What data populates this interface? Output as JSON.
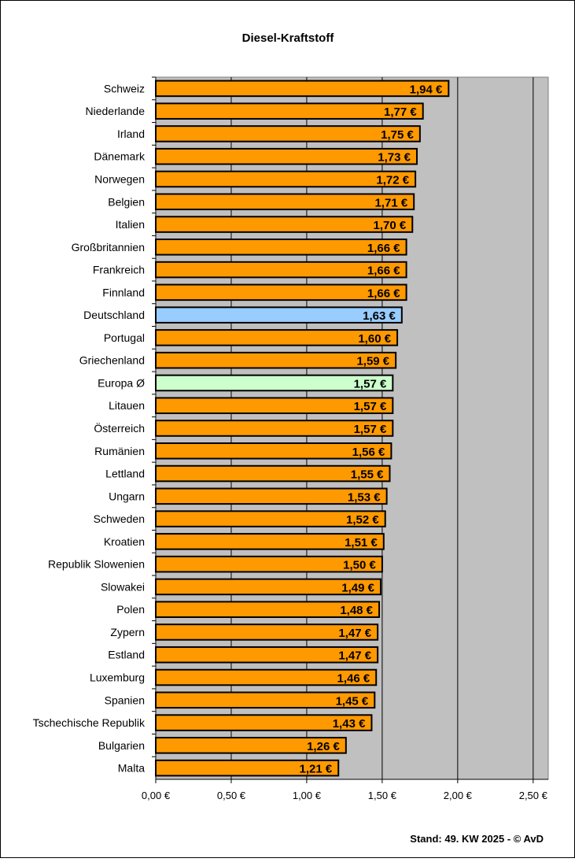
{
  "chart_data": {
    "type": "bar",
    "orientation": "horizontal",
    "title": "Diesel-Kraftstoff",
    "footer": "Stand: 49. KW 2025 - © AvD",
    "categories": [
      "Schweiz",
      "Niederlande",
      "Irland",
      "Dänemark",
      "Norwegen",
      "Belgien",
      "Italien",
      "Großbritannien",
      "Frankreich",
      "Finnland",
      "Deutschland",
      "Portugal",
      "Griechenland",
      "Europa Ø",
      "Litauen",
      "Österreich",
      "Rumänien",
      "Lettland",
      "Ungarn",
      "Schweden",
      "Kroatien",
      "Republik Slowenien",
      "Slowakei",
      "Polen",
      "Zypern",
      "Estland",
      "Luxemburg",
      "Spanien",
      "Tschechische Republik",
      "Bulgarien",
      "Malta"
    ],
    "values": [
      1.94,
      1.77,
      1.75,
      1.73,
      1.72,
      1.71,
      1.7,
      1.66,
      1.66,
      1.66,
      1.63,
      1.6,
      1.59,
      1.57,
      1.57,
      1.57,
      1.56,
      1.55,
      1.53,
      1.52,
      1.51,
      1.5,
      1.49,
      1.48,
      1.47,
      1.47,
      1.46,
      1.45,
      1.43,
      1.26,
      1.21
    ],
    "data_labels": [
      "1,94 €",
      "1,77 €",
      "1,75 €",
      "1,73 €",
      "1,72 €",
      "1,71 €",
      "1,70 €",
      "1,66 €",
      "1,66 €",
      "1,66 €",
      "1,63 €",
      "1,60 €",
      "1,59 €",
      "1,57 €",
      "1,57 €",
      "1,57 €",
      "1,56 €",
      "1,55 €",
      "1,53 €",
      "1,52 €",
      "1,51 €",
      "1,50 €",
      "1,49 €",
      "1,48 €",
      "1,47 €",
      "1,47 €",
      "1,46 €",
      "1,45 €",
      "1,43 €",
      "1,26 €",
      "1,21 €"
    ],
    "xlim": [
      0,
      2.6
    ],
    "xticks": [
      0,
      0.5,
      1.0,
      1.5,
      2.0,
      2.5
    ],
    "xtick_labels": [
      "0,00 €",
      "0,50 €",
      "1,00 €",
      "1,50 €",
      "2,00 €",
      "2,50 €"
    ],
    "grid": true,
    "colors": {
      "default": "#FF9900",
      "Deutschland": "#99CCFF",
      "Europa Ø": "#CCFFCC",
      "plot_background": "#C0C0C0"
    }
  }
}
